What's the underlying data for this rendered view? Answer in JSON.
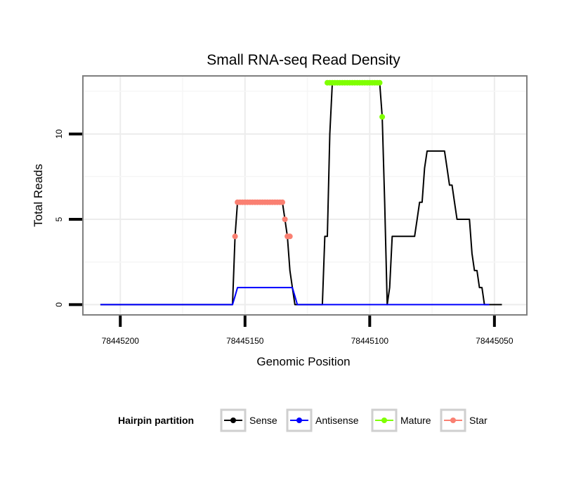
{
  "chart_data": {
    "type": "line",
    "title": "Small RNA-seq Read Density",
    "xlabel": "Genomic Position",
    "ylabel": "Total Reads",
    "x_reversed": true,
    "xlim": [
      78445215,
      78445037
    ],
    "ylim": [
      -0.6,
      13.4
    ],
    "x_ticks": [
      78445200,
      78445150,
      78445100,
      78445050
    ],
    "x_tick_labels": [
      "78445200",
      "78445150",
      "78445100",
      "78445050"
    ],
    "y_ticks": [
      0,
      5,
      10
    ],
    "y_tick_labels": [
      "0",
      "5",
      "10"
    ],
    "grid": true,
    "legend": {
      "title": "Hairpin partition",
      "position": "bottom",
      "entries": [
        {
          "name": "Sense",
          "color": "#000000"
        },
        {
          "name": "Antisense",
          "color": "#0000FF"
        },
        {
          "name": "Mature",
          "color": "#7FFF00"
        },
        {
          "name": "Star",
          "color": "#FA8072"
        }
      ]
    },
    "series": [
      {
        "name": "Sense",
        "color": "#000000",
        "marker": false,
        "x": [
          78445208,
          78445155,
          78445154,
          78445153,
          78445152,
          78445135,
          78445134,
          78445133,
          78445132,
          78445131,
          78445130,
          78445129,
          78445128,
          78445119,
          78445118,
          78445117,
          78445116,
          78445115,
          78445114,
          78445096,
          78445095,
          78445094,
          78445093,
          78445092,
          78445091,
          78445090,
          78445089,
          78445082,
          78445081,
          78445080,
          78445079,
          78445078,
          78445077,
          78445070,
          78445069,
          78445068,
          78445067,
          78445066,
          78445065,
          78445064,
          78445063,
          78445062,
          78445061,
          78445060,
          78445059,
          78445058,
          78445057,
          78445056,
          78445055,
          78445054,
          78445052,
          78445047
        ],
        "y": [
          0,
          0,
          4,
          6,
          6,
          6,
          5,
          4,
          2,
          1,
          0,
          0,
          0,
          0,
          4,
          4,
          10,
          13,
          13,
          13,
          11,
          6,
          0,
          1,
          4,
          4,
          4,
          4,
          5,
          6,
          6,
          8,
          9,
          9,
          8,
          7,
          7,
          6,
          5,
          5,
          5,
          5,
          5,
          5,
          3,
          2,
          2,
          1,
          1,
          0,
          0,
          0
        ]
      },
      {
        "name": "Antisense",
        "color": "#0000FF",
        "marker": false,
        "x": [
          78445208,
          78445155,
          78445154,
          78445153,
          78445131,
          78445130,
          78445129,
          78445054,
          78445052
        ],
        "y": [
          0,
          0,
          0.5,
          1,
          1,
          0.5,
          0,
          0,
          0
        ]
      },
      {
        "name": "Mature",
        "color": "#7FFF00",
        "marker": true,
        "x": [
          78445117,
          78445116,
          78445115,
          78445114,
          78445113,
          78445112,
          78445111,
          78445110,
          78445109,
          78445108,
          78445107,
          78445106,
          78445105,
          78445104,
          78445103,
          78445102,
          78445101,
          78445100,
          78445099,
          78445098,
          78445097,
          78445096,
          78445095
        ],
        "y": [
          13,
          13,
          13,
          13,
          13,
          13,
          13,
          13,
          13,
          13,
          13,
          13,
          13,
          13,
          13,
          13,
          13,
          13,
          13,
          13,
          13,
          13,
          11
        ]
      },
      {
        "name": "Star",
        "color": "#FA8072",
        "marker": true,
        "x": [
          78445154,
          78445153,
          78445152,
          78445151,
          78445150,
          78445149,
          78445148,
          78445147,
          78445146,
          78445145,
          78445144,
          78445143,
          78445142,
          78445141,
          78445140,
          78445139,
          78445138,
          78445137,
          78445136,
          78445135,
          78445134,
          78445133,
          78445132
        ],
        "y": [
          4,
          6,
          6,
          6,
          6,
          6,
          6,
          6,
          6,
          6,
          6,
          6,
          6,
          6,
          6,
          6,
          6,
          6,
          6,
          6,
          5,
          4,
          4
        ]
      }
    ]
  }
}
